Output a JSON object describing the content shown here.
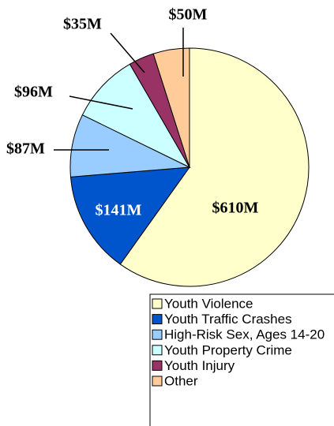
{
  "chart_data": {
    "type": "pie",
    "categories": [
      "Youth Violence",
      "Youth Traffic Crashes",
      "High-Risk Sex, Ages 14-20",
      "Youth Property Crime",
      "Youth Injury",
      "Other"
    ],
    "values": [
      610,
      141,
      87,
      96,
      35,
      50
    ],
    "value_labels": [
      "$610M",
      "$141M",
      "$87M",
      "$96M",
      "$35M",
      "$50M"
    ],
    "colors": [
      "#ffffcc",
      "#0055cc",
      "#99ccff",
      "#ccffff",
      "#993366",
      "#ffcc99"
    ],
    "legend": "bottom"
  }
}
